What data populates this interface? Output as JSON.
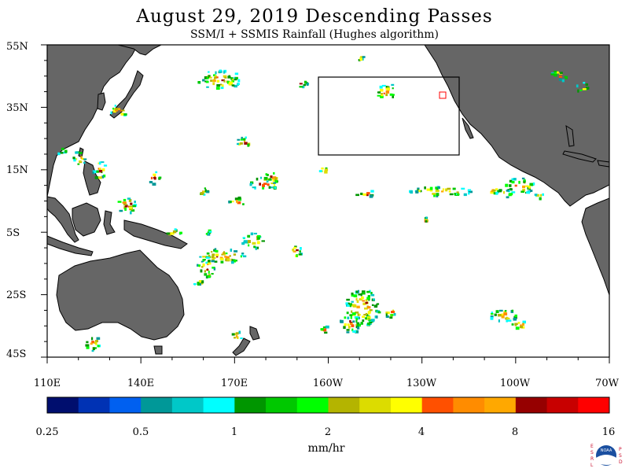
{
  "header": {
    "title": "August 29, 2019  Descending Passes",
    "subtitle": "SSM/I + SSMIS Rainfall (Hughes algorithm)"
  },
  "axes": {
    "lat_labels": [
      "55N",
      "35N",
      "15N",
      "5S",
      "25S",
      "45S"
    ],
    "lon_labels": [
      "110E",
      "140E",
      "170E",
      "160W",
      "130W",
      "100W",
      "70W"
    ]
  },
  "colorbar": {
    "colors": [
      "#000e6e",
      "#0032b4",
      "#0060f0",
      "#009898",
      "#00c8c8",
      "#00ffff",
      "#009600",
      "#00c800",
      "#00ff00",
      "#b4b400",
      "#dcdc00",
      "#ffff00",
      "#ff5000",
      "#ff8c00",
      "#ffa800",
      "#960000",
      "#c80000",
      "#ff0000"
    ],
    "labels": [
      "0.25",
      "0.5",
      "1",
      "2",
      "4",
      "8",
      "16"
    ],
    "unit": "mm/hr"
  },
  "colors": {
    "land": "#666666",
    "ocean": "#ffffff",
    "frame": "#000000"
  },
  "logo": {
    "left_letters": [
      "E",
      "S",
      "R",
      "L"
    ],
    "right_letters": [
      "P",
      "S",
      "D"
    ],
    "center_text": "NOAA"
  }
}
